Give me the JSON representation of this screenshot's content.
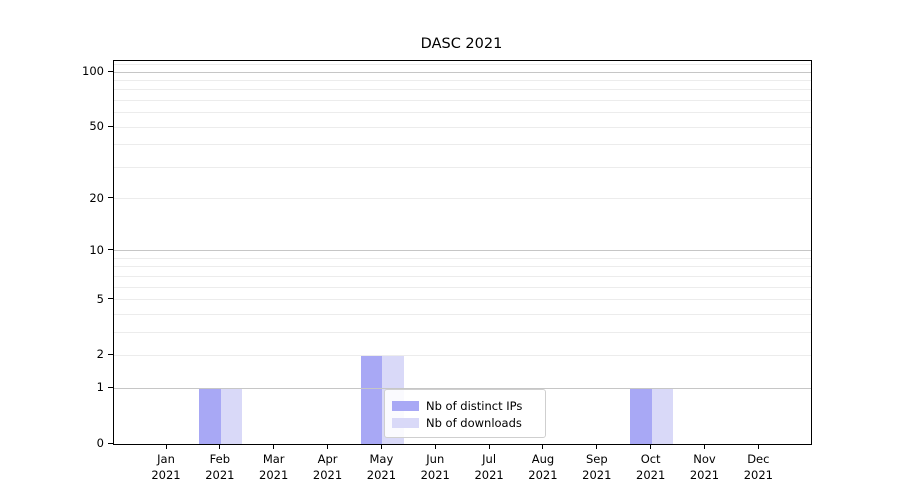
{
  "chart_data": {
    "type": "bar",
    "title": "DASC 2021",
    "categories": [
      "Jan 2021",
      "Feb 2021",
      "Mar 2021",
      "Apr 2021",
      "May 2021",
      "Jun 2021",
      "Jul 2021",
      "Aug 2021",
      "Sep 2021",
      "Oct 2021",
      "Nov 2021",
      "Dec 2021"
    ],
    "series": [
      {
        "name": "Nb of distinct IPs",
        "color": "#a8a8f5",
        "values": [
          0,
          1,
          0,
          0,
          2,
          0,
          0,
          0,
          0,
          1,
          0,
          0
        ]
      },
      {
        "name": "Nb of downloads",
        "color": "#d9d9f8",
        "values": [
          0,
          1,
          0,
          0,
          2,
          0,
          0,
          0,
          0,
          1,
          0,
          0
        ]
      }
    ],
    "xlabel": "",
    "ylabel": "",
    "yscale": "log1p",
    "ylim": [
      0,
      115
    ],
    "ytick_labels": [
      0,
      1,
      2,
      5,
      10,
      20,
      50,
      100
    ],
    "major_gridlines": [
      1,
      10,
      100
    ],
    "minor_gridlines": [
      2,
      3,
      4,
      5,
      6,
      7,
      8,
      9,
      20,
      30,
      40,
      50,
      60,
      70,
      80,
      90,
      110
    ],
    "grid": "horizontal",
    "legend_position": "lower center"
  },
  "colors": {
    "major_grid": "#c6c6c6",
    "minor_grid": "#ececec",
    "spine": "#000000",
    "legend_border": "#cfcfcf"
  }
}
